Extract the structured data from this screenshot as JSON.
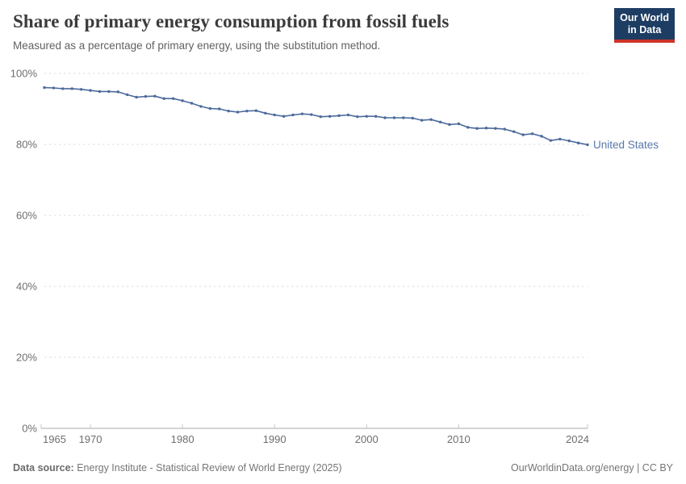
{
  "header": {
    "title": "Share of primary energy consumption from fossil fuels",
    "subtitle": "Measured as a percentage of primary energy, using the substitution method."
  },
  "logo": {
    "line1": "Our World",
    "line2": "in Data",
    "bg_color": "#1d3d63",
    "accent_color": "#cf3429"
  },
  "chart_data": {
    "type": "line",
    "title": "Share of primary energy consumption from fossil fuels",
    "xlabel": "",
    "ylabel": "",
    "xlim": [
      1965,
      2024
    ],
    "ylim": [
      0,
      100
    ],
    "yticks": [
      0,
      20,
      40,
      60,
      80,
      100
    ],
    "ytick_labels": [
      "0%",
      "20%",
      "40%",
      "60%",
      "80%",
      "100%"
    ],
    "xticks": [
      1965,
      1970,
      1980,
      1990,
      2000,
      2010,
      2024
    ],
    "xtick_labels": [
      "1965",
      "1970",
      "1980",
      "1990",
      "2000",
      "2010",
      "2024"
    ],
    "grid": "horizontal-dashed",
    "grid_color": "#dedede",
    "axis_color": "#a8a8a8",
    "tick_label_color": "#6e6e6e",
    "legend_position": "end-of-line",
    "x": [
      1965,
      1966,
      1967,
      1968,
      1969,
      1970,
      1971,
      1972,
      1973,
      1974,
      1975,
      1976,
      1977,
      1978,
      1979,
      1980,
      1981,
      1982,
      1983,
      1984,
      1985,
      1986,
      1987,
      1988,
      1989,
      1990,
      1991,
      1992,
      1993,
      1994,
      1995,
      1996,
      1997,
      1998,
      1999,
      2000,
      2001,
      2002,
      2003,
      2004,
      2005,
      2006,
      2007,
      2008,
      2009,
      2010,
      2011,
      2012,
      2013,
      2014,
      2015,
      2016,
      2017,
      2018,
      2019,
      2020,
      2021,
      2022,
      2023,
      2024
    ],
    "series": [
      {
        "name": "United States",
        "color": "#4c6a9c",
        "label_color": "#5878ab",
        "values": [
          96.0,
          95.9,
          95.7,
          95.7,
          95.5,
          95.2,
          94.9,
          94.9,
          94.8,
          94.0,
          93.3,
          93.5,
          93.6,
          92.9,
          92.9,
          92.3,
          91.6,
          90.7,
          90.1,
          90.0,
          89.4,
          89.1,
          89.4,
          89.5,
          88.8,
          88.3,
          87.9,
          88.3,
          88.6,
          88.4,
          87.8,
          87.9,
          88.1,
          88.3,
          87.8,
          87.9,
          87.9,
          87.5,
          87.5,
          87.5,
          87.4,
          86.8,
          87.0,
          86.3,
          85.6,
          85.8,
          84.8,
          84.5,
          84.6,
          84.5,
          84.3,
          83.6,
          82.7,
          83.0,
          82.3,
          81.1,
          81.5,
          81.0,
          80.4,
          79.9
        ]
      }
    ]
  },
  "footer": {
    "datasource_label": "Data source:",
    "datasource_text": " Energy Institute - Statistical Review of World Energy (2025)",
    "right_text": "OurWorldinData.org/energy | CC BY"
  }
}
